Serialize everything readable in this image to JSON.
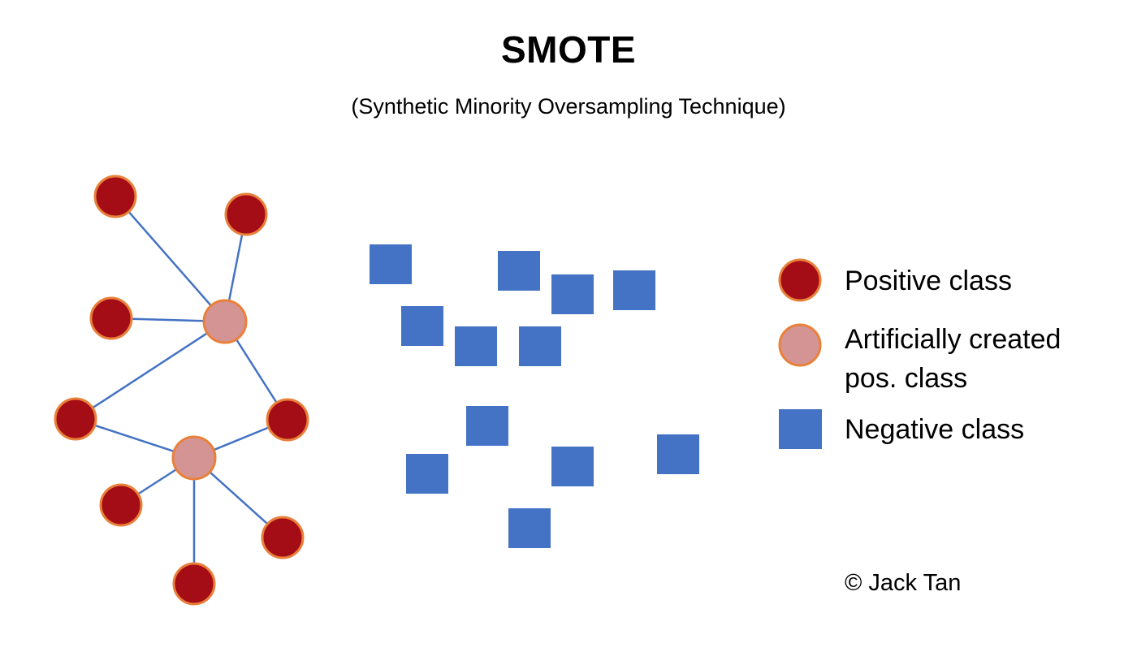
{
  "header": {
    "title": "SMOTE",
    "subtitle": "(Synthetic Minority Oversampling Technique)"
  },
  "legend": {
    "positive": "Positive class",
    "artificial_line1": "Artificially created",
    "artificial_line2": "pos. class",
    "negative": "Negative class"
  },
  "footer": {
    "copyright": "© Jack Tan"
  },
  "colors": {
    "positive_fill": "#a50d16",
    "artificial_fill": "#d49494",
    "outline": "#e9803a",
    "negative_fill": "#4472c4",
    "edge": "#4472c4"
  }
}
